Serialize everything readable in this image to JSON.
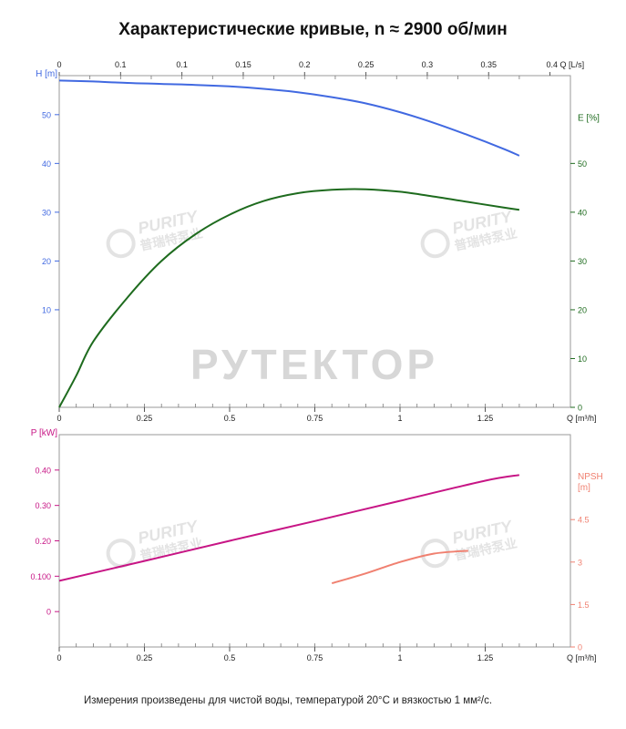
{
  "page": {
    "title": "Характеристические кривые, n ≈ 2900 об/мин",
    "footnote": "Измерения произведены для чистой воды, температурой 20°C и вязкостью 1 мм²/с.",
    "watermarks": [
      "РУТЕКТОР",
      "PURITY",
      "普瑞特泵业"
    ]
  },
  "colors": {
    "head": "#4169E1",
    "efficiency": "#1E6B1E",
    "power": "#C71585",
    "npsh": "#F08070",
    "frame": "#9A9A9A",
    "watermark": "#C8C8C8"
  },
  "chart_data": [
    {
      "type": "line",
      "xlabel": "Q [m³/h]",
      "x2label": "Q [L/s]",
      "xlim": [
        0,
        1.5
      ],
      "x_ticks": [
        "0",
        "0.25",
        "0.5",
        "0.75",
        "1",
        "1.25"
      ],
      "x_ticks_values": [
        0,
        0.25,
        0.5,
        0.75,
        1,
        1.25
      ],
      "x2_ticks": [
        "0",
        "0.1",
        "0.1",
        "0.15",
        "0.2",
        "0.25",
        "0.3",
        "0.35",
        "0.4"
      ],
      "x2_ticks_values": [
        0,
        0.05,
        0.1,
        0.15,
        0.2,
        0.25,
        0.3,
        0.35,
        0.4
      ],
      "left_axis": {
        "label": "H [m]",
        "ylim": [
          -10,
          58
        ],
        "ticks": [
          "50",
          "40",
          "30",
          "20",
          "10"
        ],
        "tick_values": [
          50,
          40,
          30,
          20,
          10
        ]
      },
      "right_axis": {
        "label": "E [%]",
        "ylim": [
          0,
          68
        ],
        "ticks": [
          "50",
          "40",
          "30",
          "20",
          "10",
          "0"
        ],
        "tick_values": [
          50,
          40,
          30,
          20,
          10,
          0
        ]
      },
      "series": [
        {
          "name": "H [m]",
          "axis": "left",
          "color": "#4169E1",
          "x": [
            0,
            0.1,
            0.2,
            0.3,
            0.4,
            0.5,
            0.6,
            0.7,
            0.8,
            0.9,
            1.0,
            1.1,
            1.2,
            1.3,
            1.35
          ],
          "y": [
            57,
            56.8,
            56.5,
            56.3,
            56.1,
            55.8,
            55.3,
            54.6,
            53.6,
            52.3,
            50.5,
            48.3,
            45.8,
            43.1,
            41.6
          ]
        },
        {
          "name": "E [%]",
          "axis": "right",
          "color": "#1E6B1E",
          "x": [
            0,
            0.05,
            0.1,
            0.2,
            0.3,
            0.4,
            0.5,
            0.6,
            0.7,
            0.8,
            0.9,
            1.0,
            1.1,
            1.2,
            1.3,
            1.35
          ],
          "y": [
            0,
            6.5,
            13.5,
            22.5,
            30,
            35.5,
            39.5,
            42.3,
            43.9,
            44.6,
            44.7,
            44.2,
            43.2,
            42.1,
            41,
            40.5
          ]
        }
      ]
    },
    {
      "type": "line",
      "xlabel": "Q [m³/h]",
      "xlim": [
        0,
        1.5
      ],
      "x_ticks": [
        "0",
        "0.25",
        "0.5",
        "0.75",
        "1",
        "1.25"
      ],
      "x_ticks_values": [
        0,
        0.25,
        0.5,
        0.75,
        1,
        1.25
      ],
      "left_axis": {
        "label": "P [kW]",
        "ylim": [
          -0.1,
          0.5
        ],
        "ticks": [
          "0.40",
          "0.30",
          "0.20",
          "0.100",
          "0"
        ],
        "tick_values": [
          0.4,
          0.3,
          0.2,
          0.1,
          0
        ]
      },
      "right_axis": {
        "label": "NPSH [m]",
        "ylim": [
          0,
          7.5
        ],
        "ticks": [
          "4.5",
          "3",
          "1.5",
          "0"
        ],
        "tick_values": [
          4.5,
          3,
          1.5,
          0
        ]
      },
      "series": [
        {
          "name": "P [kW]",
          "axis": "left",
          "color": "#C71585",
          "x": [
            0,
            0.25,
            0.5,
            0.75,
            1.0,
            1.25,
            1.35
          ],
          "y": [
            0.087,
            0.143,
            0.2,
            0.256,
            0.313,
            0.37,
            0.386
          ]
        },
        {
          "name": "NPSH [m]",
          "axis": "right",
          "color": "#F08070",
          "x": [
            0.8,
            0.9,
            1.0,
            1.1,
            1.2
          ],
          "y": [
            2.25,
            2.6,
            3.0,
            3.3,
            3.4
          ]
        }
      ]
    }
  ]
}
